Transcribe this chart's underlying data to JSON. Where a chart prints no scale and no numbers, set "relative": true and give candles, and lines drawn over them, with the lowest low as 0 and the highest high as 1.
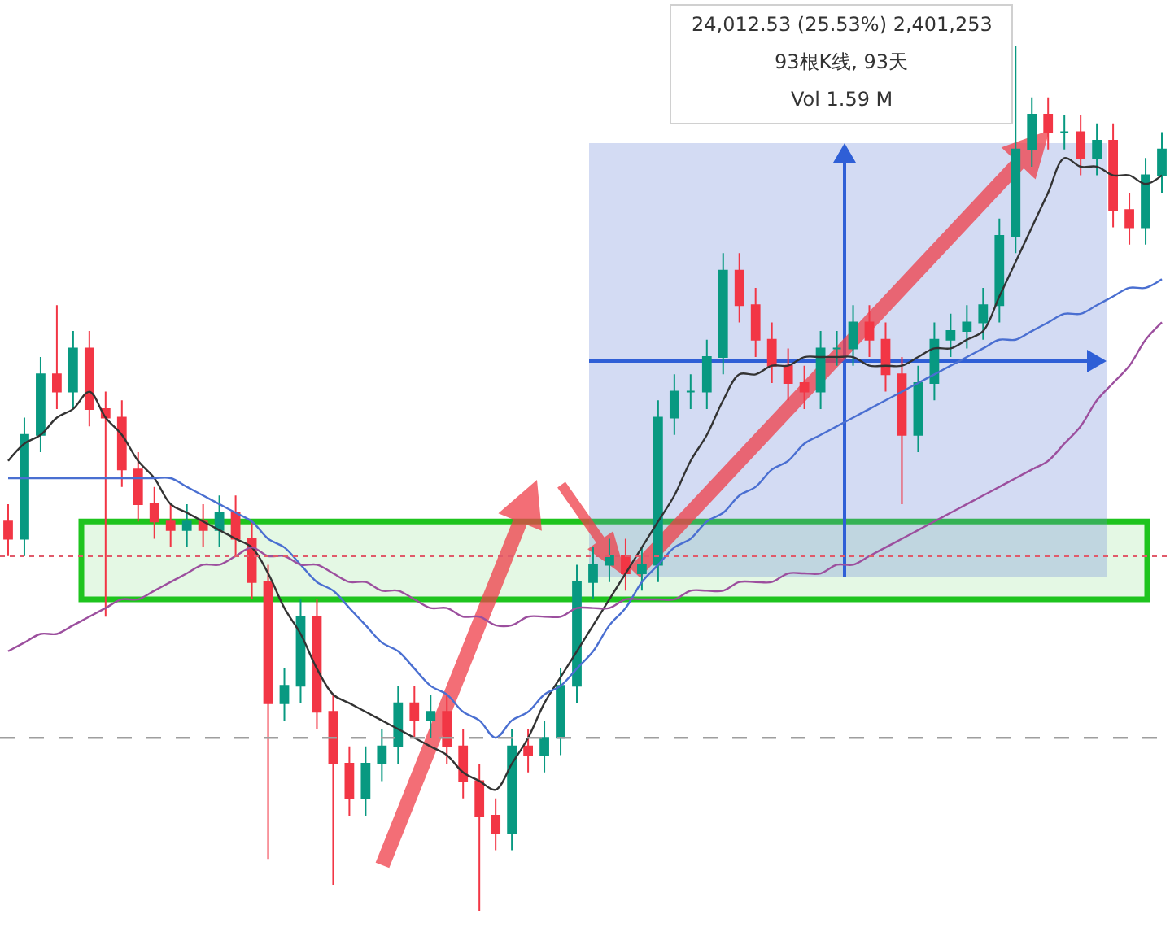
{
  "chart_data": {
    "type": "candlestick",
    "relative": true,
    "categories": [
      null,
      null,
      null,
      null,
      null,
      null,
      null,
      null,
      null,
      null,
      null,
      null,
      null,
      null,
      null,
      null,
      null,
      null,
      null,
      null,
      null,
      null,
      null,
      null,
      null,
      null,
      null,
      null,
      null,
      null,
      null,
      null,
      null,
      null,
      null,
      null,
      null,
      null,
      null,
      null,
      null,
      null,
      null,
      null,
      null,
      null,
      null,
      null,
      null,
      null,
      null,
      null,
      null,
      null,
      null,
      null,
      null,
      null,
      null,
      null,
      null,
      null,
      null,
      null,
      null,
      null,
      null,
      null,
      null,
      null,
      null,
      null
    ],
    "ohlc": [
      [
        0.45,
        0.47,
        0.41,
        0.43
      ],
      [
        0.43,
        0.57,
        0.41,
        0.55
      ],
      [
        0.55,
        0.64,
        0.53,
        0.62
      ],
      [
        0.62,
        0.7,
        0.58,
        0.6
      ],
      [
        0.6,
        0.67,
        0.58,
        0.65
      ],
      [
        0.65,
        0.67,
        0.56,
        0.58
      ],
      [
        0.58,
        0.6,
        0.34,
        0.57
      ],
      [
        0.57,
        0.59,
        0.49,
        0.51
      ],
      [
        0.51,
        0.53,
        0.45,
        0.47
      ],
      [
        0.47,
        0.49,
        0.43,
        0.45
      ],
      [
        0.45,
        0.47,
        0.42,
        0.44
      ],
      [
        0.44,
        0.47,
        0.42,
        0.45
      ],
      [
        0.45,
        0.47,
        0.42,
        0.44
      ],
      [
        0.44,
        0.48,
        0.42,
        0.46
      ],
      [
        0.46,
        0.48,
        0.41,
        0.43
      ],
      [
        0.43,
        0.45,
        0.36,
        0.38
      ],
      [
        0.38,
        0.4,
        0.06,
        0.24
      ],
      [
        0.24,
        0.28,
        0.22,
        0.26
      ],
      [
        0.26,
        0.36,
        0.24,
        0.34
      ],
      [
        0.34,
        0.36,
        0.21,
        0.23
      ],
      [
        0.23,
        0.25,
        0.03,
        0.17
      ],
      [
        0.17,
        0.19,
        0.11,
        0.13
      ],
      [
        0.13,
        0.19,
        0.11,
        0.17
      ],
      [
        0.17,
        0.21,
        0.15,
        0.19
      ],
      [
        0.19,
        0.26,
        0.17,
        0.24
      ],
      [
        0.24,
        0.26,
        0.2,
        0.22
      ],
      [
        0.22,
        0.25,
        0.2,
        0.23
      ],
      [
        0.23,
        0.25,
        0.17,
        0.19
      ],
      [
        0.19,
        0.21,
        0.13,
        0.15
      ],
      [
        0.15,
        0.17,
        0.0,
        0.11
      ],
      [
        0.11,
        0.13,
        0.07,
        0.09
      ],
      [
        0.09,
        0.21,
        0.07,
        0.19
      ],
      [
        0.19,
        0.21,
        0.16,
        0.18
      ],
      [
        0.18,
        0.22,
        0.16,
        0.2
      ],
      [
        0.2,
        0.28,
        0.18,
        0.26
      ],
      [
        0.26,
        0.4,
        0.24,
        0.38
      ],
      [
        0.38,
        0.42,
        0.36,
        0.4
      ],
      [
        0.4,
        0.43,
        0.38,
        0.41
      ],
      [
        0.41,
        0.43,
        0.37,
        0.39
      ],
      [
        0.39,
        0.42,
        0.37,
        0.4
      ],
      [
        0.4,
        0.59,
        0.38,
        0.57
      ],
      [
        0.57,
        0.62,
        0.55,
        0.6
      ],
      [
        0.6,
        0.62,
        0.58,
        0.6
      ],
      [
        0.6,
        0.66,
        0.58,
        0.64
      ],
      [
        0.64,
        0.76,
        0.62,
        0.74
      ],
      [
        0.74,
        0.76,
        0.68,
        0.7
      ],
      [
        0.7,
        0.72,
        0.64,
        0.66
      ],
      [
        0.66,
        0.68,
        0.61,
        0.63
      ],
      [
        0.63,
        0.65,
        0.59,
        0.61
      ],
      [
        0.61,
        0.63,
        0.58,
        0.6
      ],
      [
        0.6,
        0.67,
        0.58,
        0.65
      ],
      [
        0.65,
        0.67,
        0.63,
        0.65
      ],
      [
        0.65,
        0.7,
        0.63,
        0.68
      ],
      [
        0.68,
        0.7,
        0.64,
        0.66
      ],
      [
        0.66,
        0.68,
        0.6,
        0.62
      ],
      [
        0.62,
        0.64,
        0.47,
        0.55
      ],
      [
        0.55,
        0.63,
        0.53,
        0.61
      ],
      [
        0.61,
        0.68,
        0.59,
        0.66
      ],
      [
        0.66,
        0.69,
        0.64,
        0.67
      ],
      [
        0.67,
        0.7,
        0.65,
        0.68
      ],
      [
        0.68,
        0.72,
        0.66,
        0.7
      ],
      [
        0.7,
        0.8,
        0.68,
        0.78
      ],
      [
        0.78,
        1.0,
        0.76,
        0.88
      ],
      [
        0.88,
        0.94,
        0.86,
        0.92
      ],
      [
        0.92,
        0.94,
        0.88,
        0.9
      ],
      [
        0.9,
        0.92,
        0.88,
        0.9
      ],
      [
        0.9,
        0.92,
        0.85,
        0.87
      ],
      [
        0.87,
        0.91,
        0.85,
        0.89
      ],
      [
        0.89,
        0.91,
        0.79,
        0.81
      ],
      [
        0.81,
        0.83,
        0.77,
        0.79
      ],
      [
        0.79,
        0.87,
        0.77,
        0.85
      ],
      [
        0.85,
        0.9,
        0.83,
        0.88
      ]
    ],
    "colors": [
      "#f23645",
      "#089981",
      "#089981",
      "#f23645",
      "#089981",
      "#f23645",
      "#f23645",
      "#f23645",
      "#f23645",
      "#f23645",
      "#f23645",
      "#089981",
      "#f23645",
      "#089981",
      "#f23645",
      "#f23645",
      "#f23645",
      "#089981",
      "#089981",
      "#f23645",
      "#f23645",
      "#f23645",
      "#089981",
      "#089981",
      "#089981",
      "#f23645",
      "#089981",
      "#f23645",
      "#f23645",
      "#f23645",
      "#f23645",
      "#089981",
      "#f23645",
      "#089981",
      "#089981",
      "#089981",
      "#089981",
      "#089981",
      "#f23645",
      "#089981",
      "#089981",
      "#089981",
      "#089981",
      "#089981",
      "#089981",
      "#f23645",
      "#f23645",
      "#f23645",
      "#f23645",
      "#f23645",
      "#089981",
      "#089981",
      "#089981",
      "#f23645",
      "#f23645",
      "#f23645",
      "#089981",
      "#089981",
      "#089981",
      "#089981",
      "#089981",
      "#089981",
      "#089981",
      "#089981",
      "#f23645",
      "#089981",
      "#f23645",
      "#089981",
      "#f23645",
      "#f23645",
      "#089981",
      "#089981"
    ],
    "series": [
      {
        "type": "line",
        "color": "#333333",
        "values": [
          0.52,
          0.54,
          0.55,
          0.57,
          0.58,
          0.6,
          0.57,
          0.55,
          0.52,
          0.5,
          0.47,
          0.46,
          0.45,
          0.44,
          0.43,
          0.42,
          0.39,
          0.35,
          0.32,
          0.28,
          0.25,
          0.24,
          0.23,
          0.22,
          0.21,
          0.2,
          0.19,
          0.18,
          0.16,
          0.15,
          0.14,
          0.17,
          0.2,
          0.24,
          0.27,
          0.3,
          0.33,
          0.36,
          0.39,
          0.42,
          0.45,
          0.48,
          0.52,
          0.55,
          0.59,
          0.62,
          0.62,
          0.63,
          0.63,
          0.64,
          0.64,
          0.64,
          0.64,
          0.63,
          0.63,
          0.63,
          0.64,
          0.65,
          0.65,
          0.66,
          0.67,
          0.71,
          0.75,
          0.79,
          0.83,
          0.87,
          0.86,
          0.86,
          0.85,
          0.85,
          0.84,
          0.85
        ]
      },
      {
        "type": "line",
        "color": "#4a6fd1",
        "values": [
          0.5,
          0.5,
          0.5,
          0.5,
          0.5,
          0.5,
          0.5,
          0.5,
          0.5,
          0.5,
          0.5,
          0.49,
          0.48,
          0.47,
          0.46,
          0.45,
          0.43,
          0.42,
          0.4,
          0.38,
          0.37,
          0.35,
          0.33,
          0.31,
          0.3,
          0.28,
          0.26,
          0.25,
          0.23,
          0.22,
          0.2,
          0.22,
          0.23,
          0.25,
          0.26,
          0.28,
          0.3,
          0.33,
          0.35,
          0.38,
          0.4,
          0.42,
          0.43,
          0.45,
          0.46,
          0.48,
          0.49,
          0.51,
          0.52,
          0.54,
          0.55,
          0.56,
          0.57,
          0.58,
          0.59,
          0.6,
          0.61,
          0.62,
          0.63,
          0.64,
          0.65,
          0.66,
          0.66,
          0.67,
          0.68,
          0.69,
          0.69,
          0.7,
          0.71,
          0.72,
          0.72,
          0.73
        ]
      },
      {
        "type": "line",
        "color": "#9c4f9e",
        "values": [
          0.3,
          0.31,
          0.32,
          0.32,
          0.33,
          0.34,
          0.35,
          0.36,
          0.36,
          0.37,
          0.38,
          0.39,
          0.4,
          0.4,
          0.41,
          0.42,
          0.41,
          0.41,
          0.4,
          0.4,
          0.39,
          0.38,
          0.38,
          0.37,
          0.37,
          0.36,
          0.35,
          0.35,
          0.34,
          0.34,
          0.33,
          0.33,
          0.34,
          0.34,
          0.34,
          0.35,
          0.35,
          0.35,
          0.36,
          0.36,
          0.36,
          0.36,
          0.37,
          0.37,
          0.37,
          0.38,
          0.38,
          0.38,
          0.39,
          0.39,
          0.39,
          0.4,
          0.4,
          0.41,
          0.42,
          0.43,
          0.44,
          0.45,
          0.46,
          0.47,
          0.48,
          0.49,
          0.5,
          0.51,
          0.52,
          0.54,
          0.56,
          0.59,
          0.61,
          0.63,
          0.66,
          0.68
        ]
      }
    ],
    "ref_lines": [
      {
        "axis": "y",
        "value": 0.41,
        "color": "#e05a6a",
        "line_style": "dotted"
      },
      {
        "axis": "y",
        "value": 0.2,
        "color": "#9e9e9e",
        "line_style": "dashed"
      }
    ],
    "bands": [
      {
        "axis": "y",
        "from": 0.36,
        "to": 0.45,
        "color": "#1ec41e"
      }
    ],
    "annotations": [
      "24,012.53 (25.53%) 2,401,253",
      "93根K线, 93天",
      "Vol 1.59 M"
    ]
  }
}
